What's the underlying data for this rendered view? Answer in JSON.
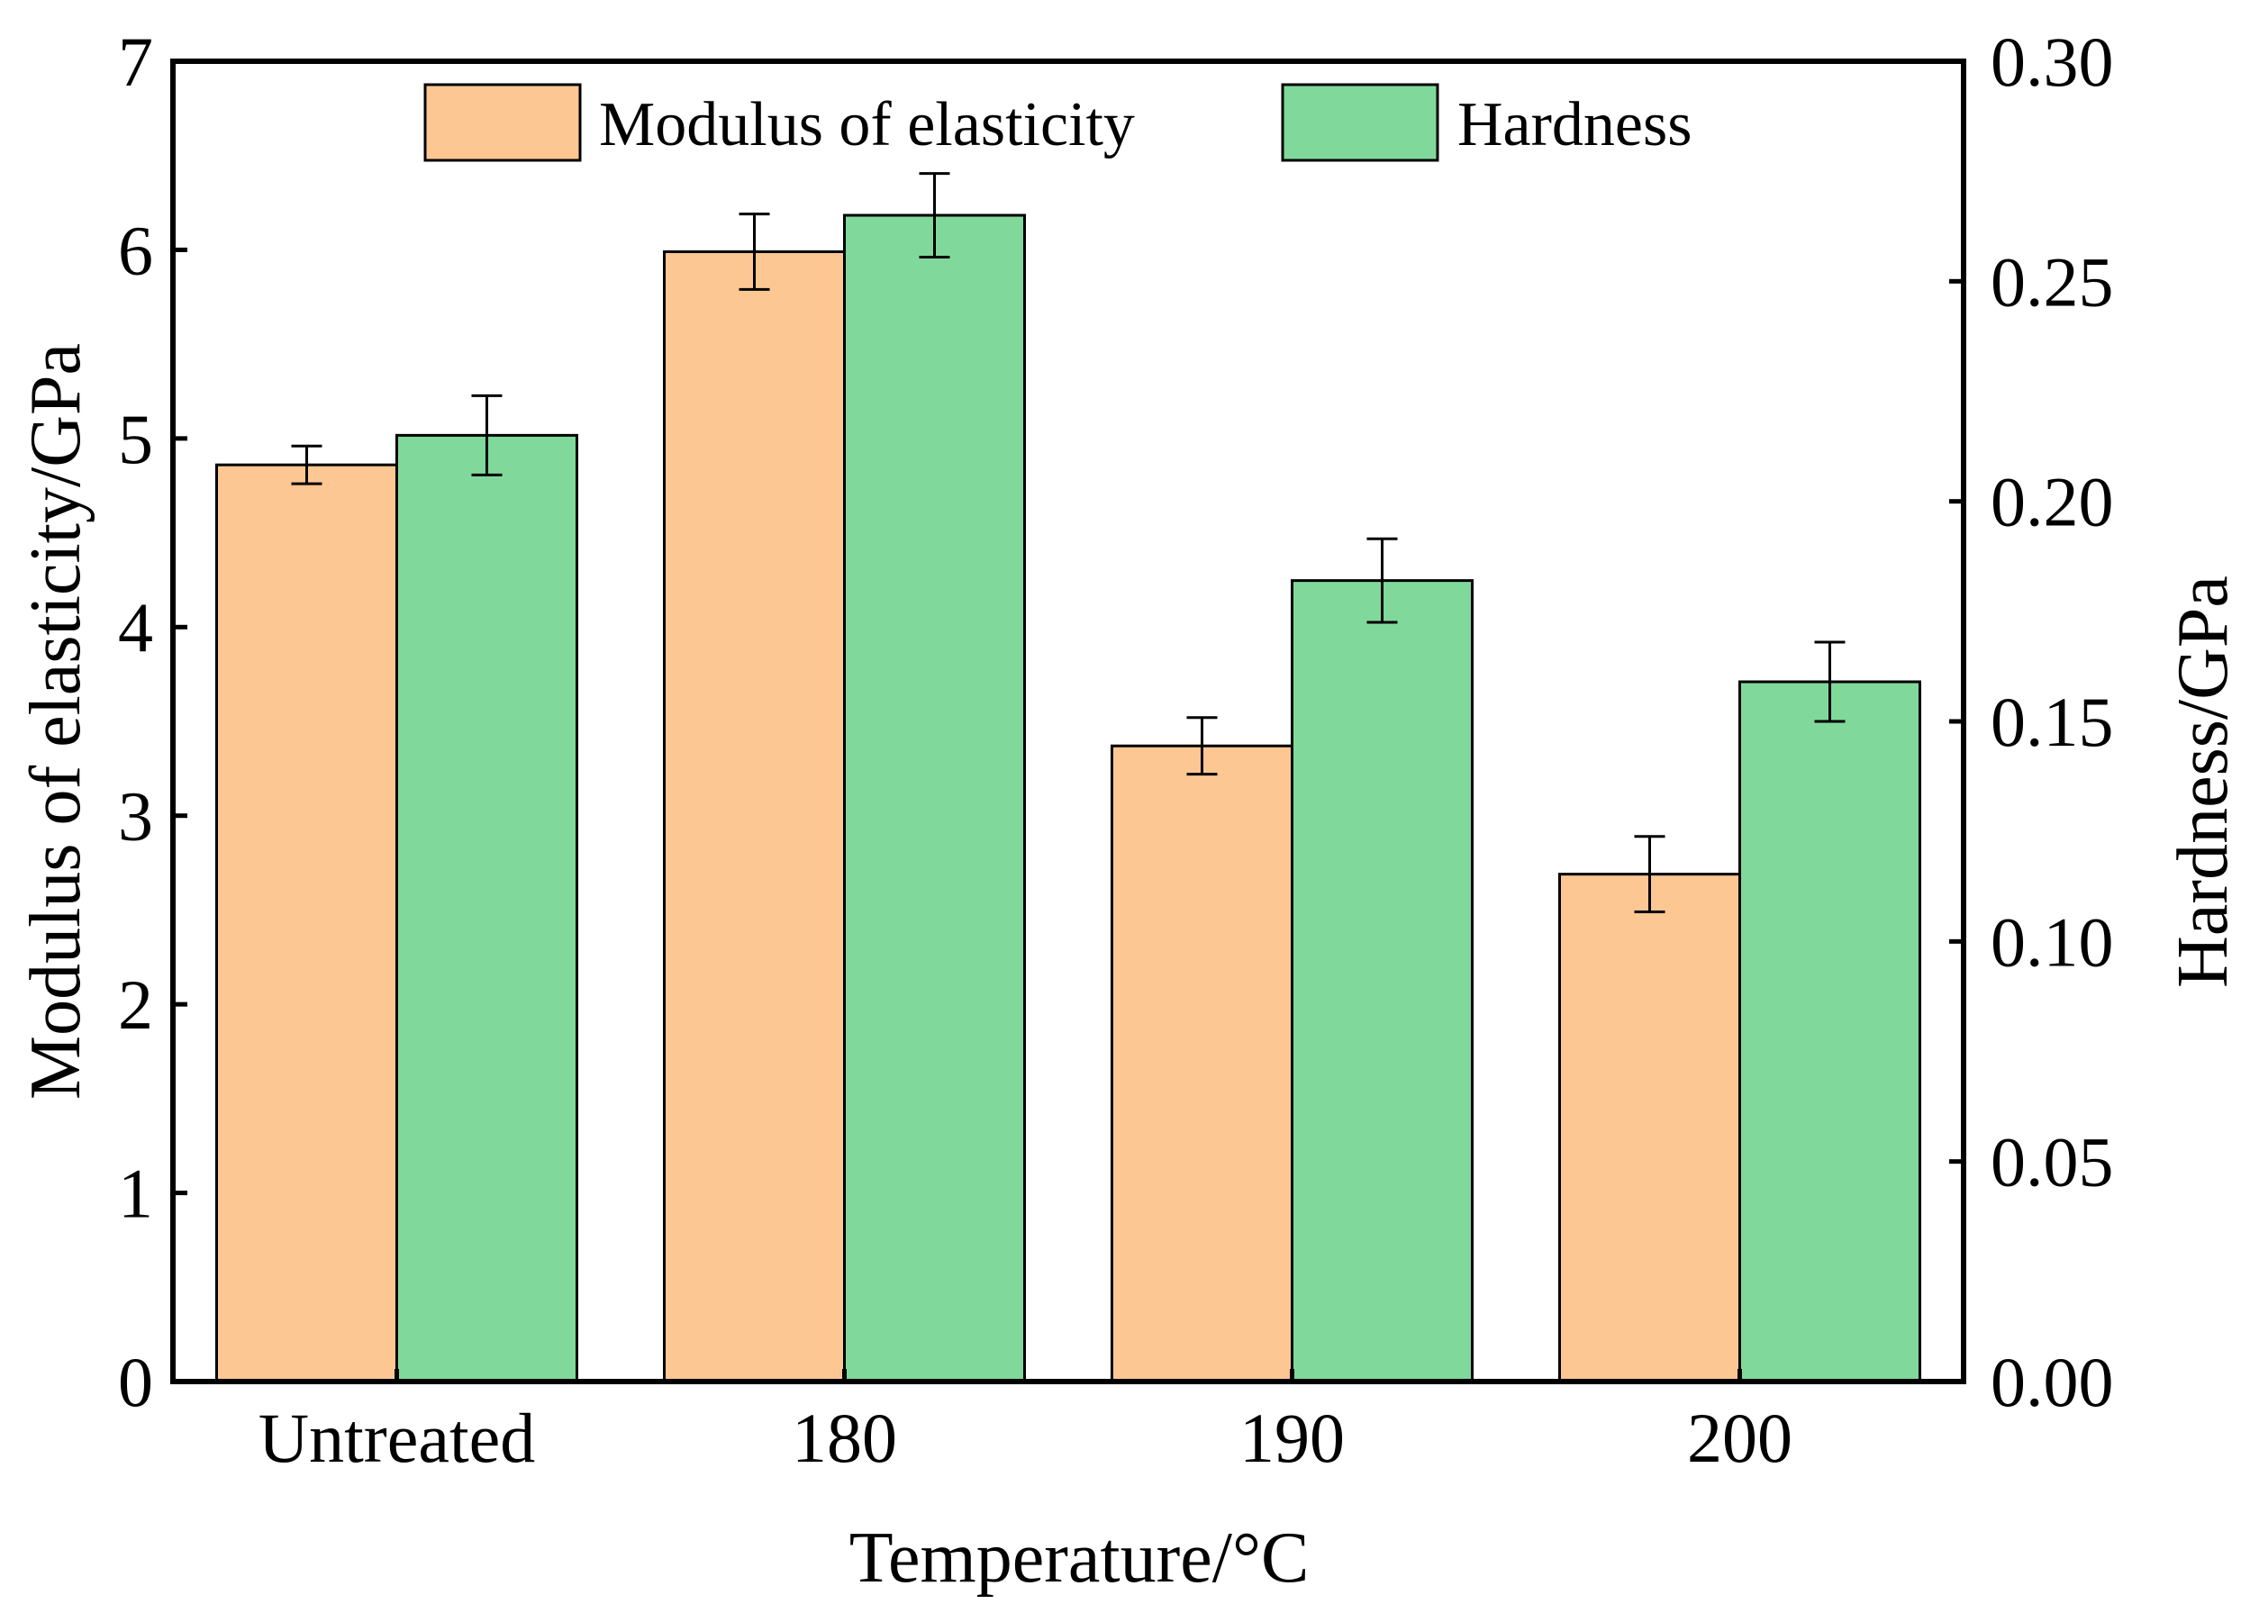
{
  "chart_data": {
    "type": "bar",
    "title": "",
    "xlabel": "Temperature/°C",
    "ylabel_left": "Modulus of elasticity/GPa",
    "ylabel_right": "Hardness/GPa",
    "categories": [
      "Untreated",
      "180",
      "190",
      "200"
    ],
    "ylim_left": [
      0,
      7
    ],
    "ylim_right": [
      0,
      0.3
    ],
    "yticks_left": [
      "0",
      "1",
      "2",
      "3",
      "4",
      "5",
      "6",
      "7"
    ],
    "yticks_right": [
      "0.00",
      "0.05",
      "0.10",
      "0.15",
      "0.20",
      "0.25",
      "0.30"
    ],
    "legend_position": "top-center",
    "grid": false,
    "series": [
      {
        "name": "Modulus of elasticity",
        "axis": "left",
        "color": "#FDC793",
        "values": [
          4.86,
          5.99,
          3.37,
          2.69
        ],
        "errors": [
          0.1,
          0.2,
          0.15,
          0.2
        ]
      },
      {
        "name": "Hardness",
        "axis": "right",
        "color": "#80D99A",
        "values": [
          0.215,
          0.265,
          0.182,
          0.159
        ],
        "errors": [
          0.009,
          0.0095,
          0.0095,
          0.009
        ]
      }
    ]
  }
}
